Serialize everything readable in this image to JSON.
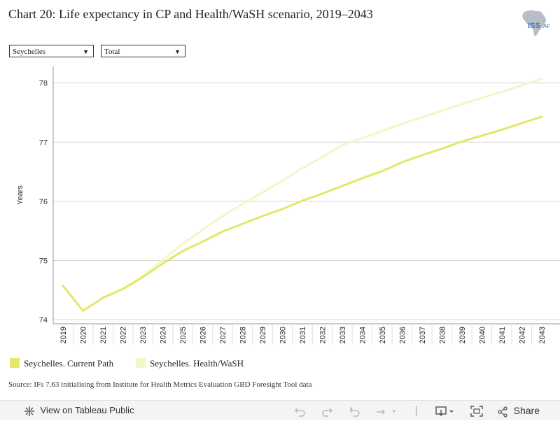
{
  "title": "Chart 20: Life expectancy in CP and Health/WaSH scenario, 2019–2043",
  "logo": {
    "text": "ISS",
    "suffix": "AF"
  },
  "filters": {
    "country": "Seychelles",
    "sex": "Total"
  },
  "source": "Source: IFs 7.63 initialising from Institute for Health Metrics Evaluation GBD Foresight Tool data",
  "toolbar": {
    "view_label": "View on Tableau Public",
    "share_label": "Share"
  },
  "colors": {
    "current_path": "#e3e86a",
    "health_wash": "#f3f6c8"
  },
  "chart_data": {
    "type": "line",
    "title": "Chart 20: Life expectancy in CP and Health/WaSH scenario, 2019–2043",
    "xlabel": "",
    "ylabel": "Years",
    "ylim": [
      73.93,
      78.28
    ],
    "yticks": [
      74,
      75,
      76,
      77,
      78
    ],
    "x": [
      "2019",
      "2020",
      "2021",
      "2022",
      "2023",
      "2024",
      "2025",
      "2026",
      "2027",
      "2028",
      "2029",
      "2030",
      "2031",
      "2032",
      "2033",
      "2034",
      "2035",
      "2036",
      "2037",
      "2038",
      "2039",
      "2040",
      "2041",
      "2042",
      "2043"
    ],
    "series": [
      {
        "name": "Seychelles. Current Path",
        "values": [
          74.57,
          74.15,
          74.37,
          74.52,
          74.72,
          74.95,
          75.16,
          75.32,
          75.49,
          75.62,
          75.75,
          75.87,
          76.01,
          76.13,
          76.26,
          76.39,
          76.51,
          76.66,
          76.78,
          76.89,
          77.01,
          77.11,
          77.21,
          77.32,
          77.43
        ]
      },
      {
        "name": "Seychelles. Health/WaSH",
        "values": [
          74.57,
          74.15,
          74.37,
          74.52,
          74.74,
          75.01,
          75.28,
          75.52,
          75.75,
          75.96,
          76.15,
          76.35,
          76.56,
          76.75,
          76.95,
          77.07,
          77.19,
          77.31,
          77.42,
          77.53,
          77.64,
          77.75,
          77.85,
          77.96,
          78.07
        ]
      }
    ],
    "grid": true,
    "legend": "bottom-left"
  }
}
